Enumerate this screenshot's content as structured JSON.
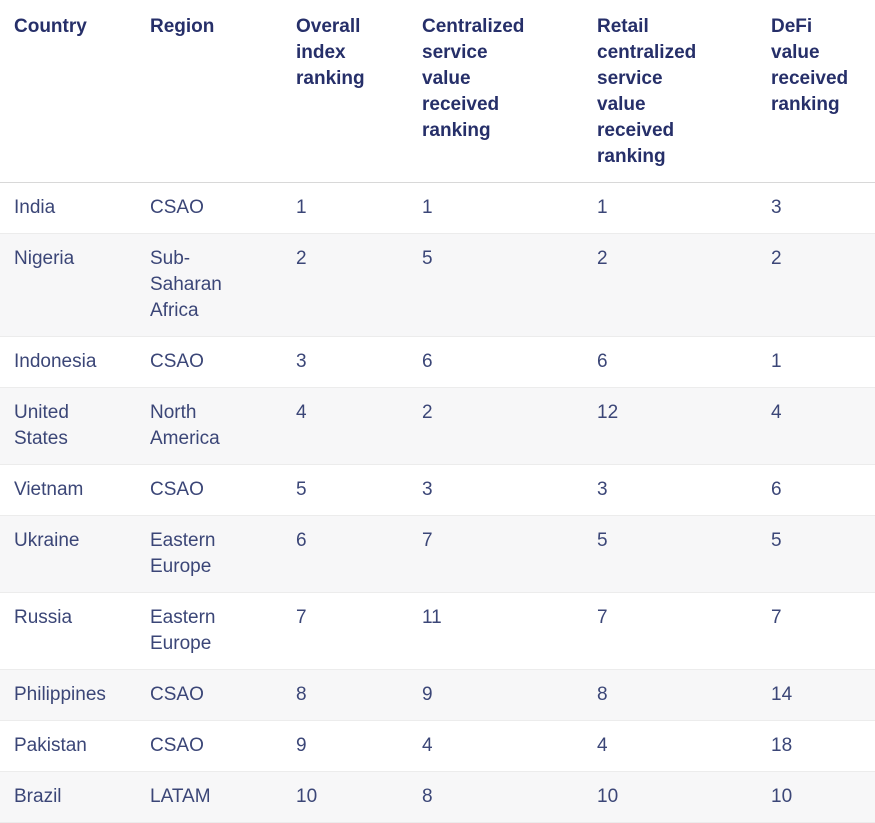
{
  "table": {
    "columns": [
      {
        "label": "Country"
      },
      {
        "label": "Region"
      },
      {
        "label": "Overall index ranking"
      },
      {
        "label": "Centralized service value received ranking"
      },
      {
        "label": "Retail centralized service value received ranking"
      },
      {
        "label": "DeFi value received ranking"
      }
    ],
    "rows": [
      {
        "country": "India",
        "region": "CSAO",
        "overall": "1",
        "centralized": "1",
        "retail": "1",
        "defi": "3"
      },
      {
        "country": "Nigeria",
        "region": "Sub-Saharan Africa",
        "overall": "2",
        "centralized": "5",
        "retail": "2",
        "defi": "2"
      },
      {
        "country": "Indonesia",
        "region": "CSAO",
        "overall": "3",
        "centralized": "6",
        "retail": "6",
        "defi": "1"
      },
      {
        "country": "United States",
        "region": "North America",
        "overall": "4",
        "centralized": "2",
        "retail": "12",
        "defi": "4"
      },
      {
        "country": "Vietnam",
        "region": "CSAO",
        "overall": "5",
        "centralized": "3",
        "retail": "3",
        "defi": "6"
      },
      {
        "country": "Ukraine",
        "region": "Eastern Europe",
        "overall": "6",
        "centralized": "7",
        "retail": "5",
        "defi": "5"
      },
      {
        "country": "Russia",
        "region": "Eastern Europe",
        "overall": "7",
        "centralized": "11",
        "retail": "7",
        "defi": "7"
      },
      {
        "country": "Philippines",
        "region": "CSAO",
        "overall": "8",
        "centralized": "9",
        "retail": "8",
        "defi": "14"
      },
      {
        "country": "Pakistan",
        "region": "CSAO",
        "overall": "9",
        "centralized": "4",
        "retail": "4",
        "defi": "18"
      },
      {
        "country": "Brazil",
        "region": "LATAM",
        "overall": "10",
        "centralized": "8",
        "retail": "10",
        "defi": "10"
      }
    ]
  },
  "chart_data": {
    "type": "table",
    "title": "",
    "columns": [
      "Country",
      "Region",
      "Overall index ranking",
      "Centralized service value received ranking",
      "Retail centralized service value received ranking",
      "DeFi value received ranking"
    ],
    "rows": [
      [
        "India",
        "CSAO",
        1,
        1,
        1,
        3
      ],
      [
        "Nigeria",
        "Sub-Saharan Africa",
        2,
        5,
        2,
        2
      ],
      [
        "Indonesia",
        "CSAO",
        3,
        6,
        6,
        1
      ],
      [
        "United States",
        "North America",
        4,
        2,
        12,
        4
      ],
      [
        "Vietnam",
        "CSAO",
        5,
        3,
        3,
        6
      ],
      [
        "Ukraine",
        "Eastern Europe",
        6,
        7,
        5,
        5
      ],
      [
        "Russia",
        "Eastern Europe",
        7,
        11,
        7,
        7
      ],
      [
        "Philippines",
        "CSAO",
        8,
        9,
        8,
        14
      ],
      [
        "Pakistan",
        "CSAO",
        9,
        4,
        4,
        18
      ],
      [
        "Brazil",
        "LATAM",
        10,
        8,
        10,
        10
      ]
    ],
    "layout_hints": {
      "striped_rows": "even rows shaded",
      "header_position": "top",
      "alignment": "left"
    }
  },
  "colors": {
    "header_text": "#262f69",
    "body_text": "#3b4677",
    "stripe": "#f7f7f8",
    "header_border": "#d8d8d8",
    "row_border": "#ececec"
  }
}
